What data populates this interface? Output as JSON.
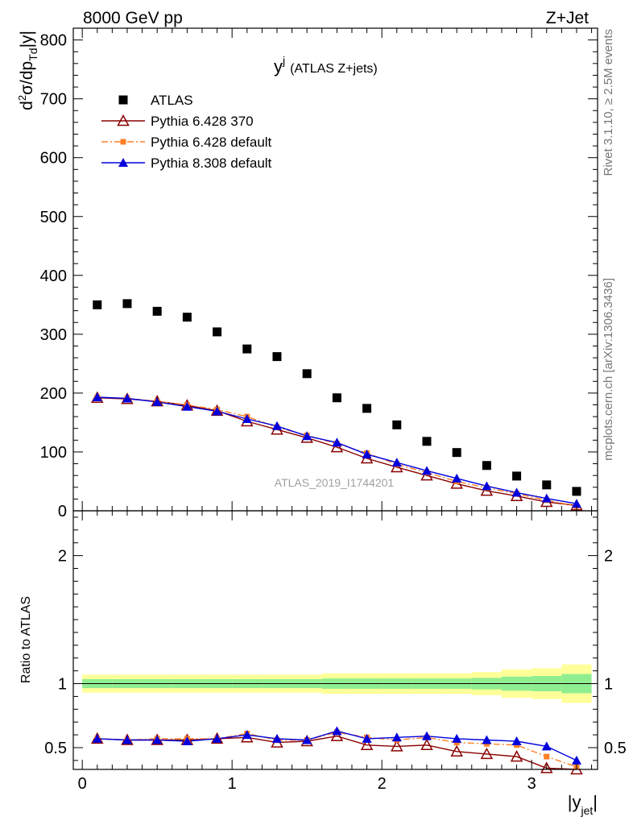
{
  "header": {
    "left": "8000 GeV pp",
    "right": "Z+Jet"
  },
  "side": {
    "rivet": "Rivet 3.1.10, ≥ 2.5M events",
    "mcplots": "mcplots.cern.ch [arXiv:1306.3436]"
  },
  "chart_data": [
    {
      "type": "scatter",
      "title_main": "y",
      "title_sup": "j",
      "title_rest": "(ATLAS Z+jets)",
      "watermark": "ATLAS_2019_I1744201",
      "ylabel": "d²σ/dp_Td|y|",
      "ylim": [
        0,
        820
      ],
      "xlim": [
        -0.06,
        3.44
      ],
      "yticks": [
        0,
        100,
        200,
        300,
        400,
        500,
        600,
        700,
        800
      ],
      "ytick_labels": [
        "0",
        "100",
        "200",
        "300",
        "400",
        "500",
        "600",
        "700",
        "800"
      ],
      "x": [
        0.1,
        0.3,
        0.5,
        0.7,
        0.9,
        1.1,
        1.3,
        1.5,
        1.7,
        1.9,
        2.1,
        2.3,
        2.5,
        2.7,
        2.9,
        3.1,
        3.3
      ],
      "series": [
        {
          "name": "ATLAS",
          "color": "#000000",
          "marker": "square",
          "line": "none",
          "values": [
            350,
            352,
            339,
            329,
            304,
            275,
            262,
            233,
            192,
            174,
            146,
            118,
            99,
            77,
            59,
            44,
            33
          ]
        },
        {
          "name": "Pythia 6.428 370",
          "color": "#8b0000",
          "marker": "triangle-open",
          "line": "solid",
          "values": [
            192,
            190,
            186,
            179,
            170,
            152,
            138,
            124,
            108,
            89,
            74,
            60,
            46,
            34,
            25,
            15,
            9
          ]
        },
        {
          "name": "Pythia 6.428 default",
          "color": "#ff7f27",
          "marker": "square-small",
          "line": "dashdot",
          "values": [
            193,
            191,
            186,
            180,
            172,
            160,
            142,
            128,
            114,
            98,
            79,
            65,
            50,
            39,
            29,
            18,
            8
          ]
        },
        {
          "name": "Pythia 8.308 default",
          "color": "#0000dd",
          "marker": "triangle",
          "line": "solid",
          "values": [
            193,
            191,
            185,
            177,
            169,
            156,
            144,
            127,
            116,
            96,
            82,
            68,
            55,
            42,
            31,
            21,
            12
          ]
        }
      ]
    },
    {
      "type": "line",
      "ylabel": "Ratio to ATLAS",
      "xlabel_main": "|y",
      "xlabel_sub": "jet",
      "xlabel_end": "|",
      "ylim": [
        0.33,
        2.35
      ],
      "xlim": [
        -0.06,
        3.44
      ],
      "yticks": [
        0.5,
        1,
        2
      ],
      "ytick_labels": [
        "0.5",
        "1",
        "2"
      ],
      "xticks": [
        0,
        1,
        2,
        3
      ],
      "xtick_labels": [
        "0",
        "1",
        "2",
        "3"
      ],
      "x": [
        0.1,
        0.3,
        0.5,
        0.7,
        0.9,
        1.1,
        1.3,
        1.5,
        1.7,
        1.9,
        2.1,
        2.3,
        2.5,
        2.7,
        2.9,
        3.1,
        3.3
      ],
      "band_outer_halfwidth": [
        0.07,
        0.07,
        0.07,
        0.07,
        0.07,
        0.07,
        0.07,
        0.07,
        0.08,
        0.08,
        0.08,
        0.08,
        0.08,
        0.09,
        0.11,
        0.12,
        0.15
      ],
      "band_inner_halfwidth": [
        0.035,
        0.035,
        0.035,
        0.035,
        0.035,
        0.035,
        0.035,
        0.035,
        0.04,
        0.04,
        0.04,
        0.04,
        0.04,
        0.045,
        0.055,
        0.06,
        0.075
      ],
      "band_colors": {
        "outer": "#ffff99",
        "inner": "#90ee90"
      },
      "series": [
        {
          "name": "Pythia 6.428 370",
          "color": "#8b0000",
          "marker": "triangle-open",
          "line": "solid",
          "values": [
            0.57,
            0.56,
            0.56,
            0.56,
            0.57,
            0.58,
            0.54,
            0.55,
            0.59,
            0.52,
            0.51,
            0.52,
            0.47,
            0.45,
            0.43,
            0.34,
            0.33
          ]
        },
        {
          "name": "Pythia 6.428 default",
          "color": "#ff7f27",
          "marker": "square-small",
          "line": "dashdot",
          "values": [
            0.57,
            0.56,
            0.57,
            0.57,
            0.57,
            0.61,
            0.56,
            0.56,
            0.62,
            0.58,
            0.56,
            0.58,
            0.54,
            0.53,
            0.52,
            0.43,
            0.35
          ]
        },
        {
          "name": "Pythia 8.308 default",
          "color": "#0000dd",
          "marker": "triangle",
          "line": "solid",
          "values": [
            0.57,
            0.56,
            0.56,
            0.55,
            0.57,
            0.6,
            0.57,
            0.56,
            0.63,
            0.57,
            0.58,
            0.59,
            0.57,
            0.56,
            0.55,
            0.51,
            0.4
          ]
        }
      ]
    }
  ]
}
